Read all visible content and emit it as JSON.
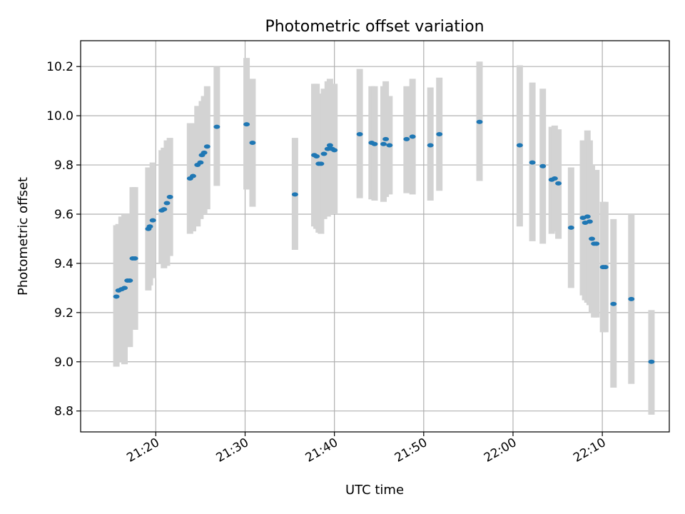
{
  "colors": {
    "point": "#1f77b4",
    "errorbar": "#d3d3d3",
    "grid": "#b0b0b0",
    "axis": "#000000"
  },
  "chart_data": {
    "type": "scatter",
    "title": "Photometric offset variation",
    "xlabel": "UTC time",
    "ylabel": "Photometric offset",
    "x_unit": "UTC time (HH:MM)",
    "xlim": [
      "21:11:35",
      "22:17:30"
    ],
    "ylim": [
      8.715,
      10.305
    ],
    "grid": true,
    "xticks": [
      "21:20",
      "21:30",
      "21:40",
      "21:50",
      "22:00",
      "22:10"
    ],
    "yticks": [
      "8.8",
      "9.0",
      "9.2",
      "9.4",
      "9.6",
      "9.8",
      "10.0",
      "10.2"
    ],
    "series": [
      {
        "marker": "point with vertical error bar",
        "points": [
          {
            "x": "21:15:35",
            "y": 9.265,
            "ylow": 8.98,
            "yhigh": 9.555
          },
          {
            "x": "21:15:50",
            "y": 9.29,
            "ylow": 9.0,
            "yhigh": 9.56
          },
          {
            "x": "21:16:10",
            "y": 9.295,
            "ylow": 9.0,
            "yhigh": 9.59
          },
          {
            "x": "21:16:30",
            "y": 9.3,
            "ylow": 8.99,
            "yhigh": 9.6
          },
          {
            "x": "21:16:50",
            "y": 9.33,
            "ylow": 9.06,
            "yhigh": 9.6
          },
          {
            "x": "21:17:05",
            "y": 9.33,
            "ylow": 9.06,
            "yhigh": 9.6
          },
          {
            "x": "21:17:25",
            "y": 9.42,
            "ylow": 9.13,
            "yhigh": 9.71
          },
          {
            "x": "21:17:40",
            "y": 9.42,
            "ylow": 9.13,
            "yhigh": 9.71
          },
          {
            "x": "21:19:10",
            "y": 9.54,
            "ylow": 9.29,
            "yhigh": 9.79
          },
          {
            "x": "21:19:20",
            "y": 9.55,
            "ylow": 9.31,
            "yhigh": 9.79
          },
          {
            "x": "21:19:40",
            "y": 9.575,
            "ylow": 9.34,
            "yhigh": 9.81
          },
          {
            "x": "21:20:40",
            "y": 9.615,
            "ylow": 9.4,
            "yhigh": 9.86
          },
          {
            "x": "21:20:55",
            "y": 9.62,
            "ylow": 9.38,
            "yhigh": 9.87
          },
          {
            "x": "21:21:15",
            "y": 9.645,
            "ylow": 9.39,
            "yhigh": 9.9
          },
          {
            "x": "21:21:35",
            "y": 9.67,
            "ylow": 9.43,
            "yhigh": 9.91
          },
          {
            "x": "21:23:50",
            "y": 9.745,
            "ylow": 9.52,
            "yhigh": 9.97
          },
          {
            "x": "21:24:10",
            "y": 9.755,
            "ylow": 9.53,
            "yhigh": 9.97
          },
          {
            "x": "21:24:40",
            "y": 9.8,
            "ylow": 9.55,
            "yhigh": 10.04
          },
          {
            "x": "21:25:00",
            "y": 9.81,
            "ylow": 9.58,
            "yhigh": 10.03
          },
          {
            "x": "21:25:10",
            "y": 9.84,
            "ylow": 9.6,
            "yhigh": 10.06
          },
          {
            "x": "21:25:25",
            "y": 9.85,
            "ylow": 9.6,
            "yhigh": 10.08
          },
          {
            "x": "21:25:45",
            "y": 9.875,
            "ylow": 9.62,
            "yhigh": 10.12
          },
          {
            "x": "21:26:50",
            "y": 9.955,
            "ylow": 9.715,
            "yhigh": 10.2
          },
          {
            "x": "21:30:10",
            "y": 9.965,
            "ylow": 9.7,
            "yhigh": 10.235
          },
          {
            "x": "21:30:50",
            "y": 9.89,
            "ylow": 9.63,
            "yhigh": 10.15
          },
          {
            "x": "21:35:35",
            "y": 9.68,
            "ylow": 9.455,
            "yhigh": 9.91
          },
          {
            "x": "21:37:45",
            "y": 9.84,
            "ylow": 9.55,
            "yhigh": 10.13
          },
          {
            "x": "21:38:00",
            "y": 9.835,
            "ylow": 9.54,
            "yhigh": 10.13
          },
          {
            "x": "21:38:15",
            "y": 9.805,
            "ylow": 9.525,
            "yhigh": 10.09
          },
          {
            "x": "21:38:30",
            "y": 9.805,
            "ylow": 9.52,
            "yhigh": 10.09
          },
          {
            "x": "21:38:50",
            "y": 9.845,
            "ylow": 9.58,
            "yhigh": 10.11
          },
          {
            "x": "21:39:15",
            "y": 9.865,
            "ylow": 9.59,
            "yhigh": 10.14
          },
          {
            "x": "21:39:30",
            "y": 9.88,
            "ylow": 9.6,
            "yhigh": 10.15
          },
          {
            "x": "21:39:45",
            "y": 9.865,
            "ylow": 9.6,
            "yhigh": 10.13
          },
          {
            "x": "21:40:00",
            "y": 9.86,
            "ylow": 9.6,
            "yhigh": 10.13
          },
          {
            "x": "21:42:50",
            "y": 9.925,
            "ylow": 9.665,
            "yhigh": 10.19
          },
          {
            "x": "21:44:10",
            "y": 9.89,
            "ylow": 9.66,
            "yhigh": 10.12
          },
          {
            "x": "21:44:30",
            "y": 9.885,
            "ylow": 9.655,
            "yhigh": 10.12
          },
          {
            "x": "21:45:30",
            "y": 9.885,
            "ylow": 9.65,
            "yhigh": 10.12
          },
          {
            "x": "21:45:45",
            "y": 9.905,
            "ylow": 9.67,
            "yhigh": 10.14
          },
          {
            "x": "21:46:10",
            "y": 9.88,
            "ylow": 9.68,
            "yhigh": 10.08
          },
          {
            "x": "21:48:05",
            "y": 9.905,
            "ylow": 9.685,
            "yhigh": 10.12
          },
          {
            "x": "21:48:45",
            "y": 9.915,
            "ylow": 9.68,
            "yhigh": 10.15
          },
          {
            "x": "21:50:45",
            "y": 9.88,
            "ylow": 9.655,
            "yhigh": 10.115
          },
          {
            "x": "21:51:45",
            "y": 9.925,
            "ylow": 9.695,
            "yhigh": 10.155
          },
          {
            "x": "21:56:15",
            "y": 9.975,
            "ylow": 9.735,
            "yhigh": 10.22
          },
          {
            "x": "22:00:45",
            "y": 9.88,
            "ylow": 9.55,
            "yhigh": 10.205
          },
          {
            "x": "22:02:10",
            "y": 9.81,
            "ylow": 9.49,
            "yhigh": 10.135
          },
          {
            "x": "22:03:20",
            "y": 9.795,
            "ylow": 9.48,
            "yhigh": 10.11
          },
          {
            "x": "22:04:20",
            "y": 9.74,
            "ylow": 9.52,
            "yhigh": 9.955
          },
          {
            "x": "22:04:40",
            "y": 9.745,
            "ylow": 9.53,
            "yhigh": 9.96
          },
          {
            "x": "22:05:05",
            "y": 9.725,
            "ylow": 9.5,
            "yhigh": 9.945
          },
          {
            "x": "22:06:30",
            "y": 9.545,
            "ylow": 9.3,
            "yhigh": 9.79
          },
          {
            "x": "22:07:50",
            "y": 9.585,
            "ylow": 9.27,
            "yhigh": 9.9
          },
          {
            "x": "22:08:05",
            "y": 9.565,
            "ylow": 9.25,
            "yhigh": 9.89
          },
          {
            "x": "22:08:20",
            "y": 9.59,
            "ylow": 9.24,
            "yhigh": 9.94
          },
          {
            "x": "22:08:35",
            "y": 9.57,
            "ylow": 9.23,
            "yhigh": 9.9
          },
          {
            "x": "22:08:50",
            "y": 9.5,
            "ylow": 9.2,
            "yhigh": 9.8
          },
          {
            "x": "22:09:05",
            "y": 9.48,
            "ylow": 9.18,
            "yhigh": 9.78
          },
          {
            "x": "22:09:20",
            "y": 9.48,
            "ylow": 9.18,
            "yhigh": 9.78
          },
          {
            "x": "22:10:05",
            "y": 9.385,
            "ylow": 9.12,
            "yhigh": 9.65
          },
          {
            "x": "22:10:20",
            "y": 9.385,
            "ylow": 9.12,
            "yhigh": 9.65
          },
          {
            "x": "22:11:15",
            "y": 9.235,
            "ylow": 8.895,
            "yhigh": 9.58
          },
          {
            "x": "22:13:15",
            "y": 9.255,
            "ylow": 8.91,
            "yhigh": 9.6
          },
          {
            "x": "22:15:30",
            "y": 9.0,
            "ylow": 8.785,
            "yhigh": 9.21
          }
        ]
      }
    ]
  }
}
